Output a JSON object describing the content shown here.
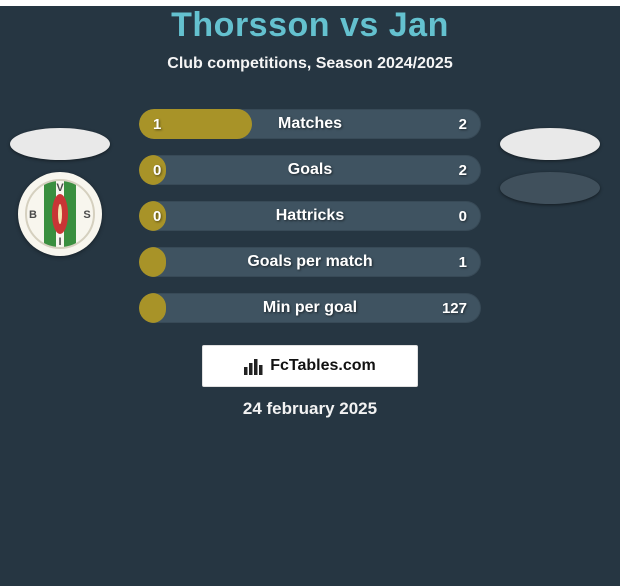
{
  "background_color": "#263642",
  "title": {
    "text": "Thorsson vs Jan",
    "color": "#64c1cf",
    "fontsize": 34
  },
  "subtitle": {
    "text": "Club competitions, Season 2024/2025",
    "color": "#f5f5f5",
    "fontsize": 16
  },
  "bar_style": {
    "track_color": "#3f5361",
    "fill_color": "#a89328",
    "label_color": "#ffffff",
    "label_fontsize": 16,
    "value_color": "#ffffff",
    "value_fontsize": 15,
    "height": 30,
    "radius": 15
  },
  "bars": [
    {
      "label": "Matches",
      "left": "1",
      "right": "2",
      "fill_pct": 33
    },
    {
      "label": "Goals",
      "left": "0",
      "right": "2",
      "fill_pct": 8
    },
    {
      "label": "Hattricks",
      "left": "0",
      "right": "0",
      "fill_pct": 8
    },
    {
      "label": "Goals per match",
      "left": "",
      "right": "1",
      "fill_pct": 8
    },
    {
      "label": "Min per goal",
      "left": "",
      "right": "127",
      "fill_pct": 8
    }
  ],
  "logos": {
    "left_oval_color": "#e9e9e9",
    "right_oval_color": "#40505c",
    "badge": {
      "bg": "#f8f6ee",
      "stripe_green": "#3a8f3f",
      "stripe_red": "#c93535",
      "letter_color": "#4a4a4a",
      "letters": {
        "top": "V",
        "left": "B",
        "right": "S",
        "bottom": "I"
      }
    }
  },
  "watermark": {
    "text": "FcTables.com",
    "icon_color": "#222222",
    "fontsize": 16
  },
  "date": {
    "text": "24 february 2025",
    "color": "#f2f2f2",
    "fontsize": 17
  }
}
